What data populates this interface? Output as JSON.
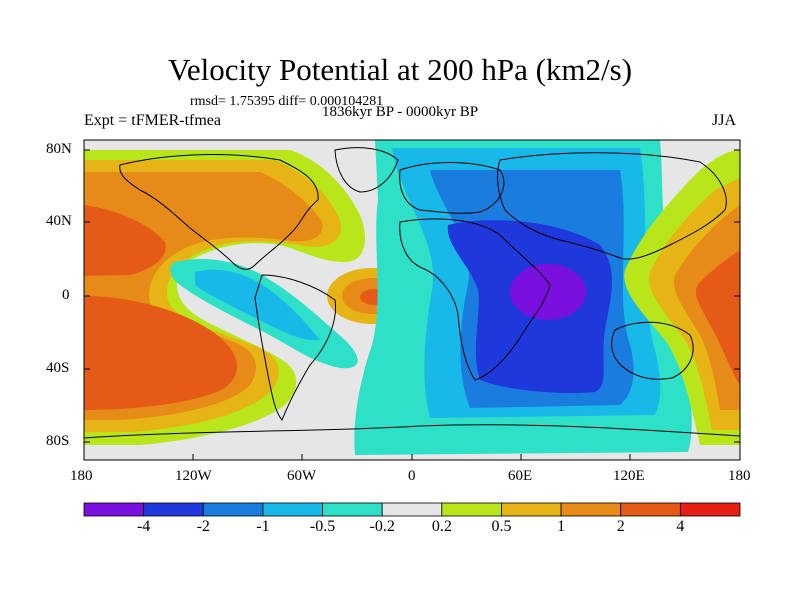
{
  "title": "Velocity Potential at 200 hPa (km2/s)",
  "stats": "rmsd= 1.75395 diff= 0.000104281",
  "period": "1836kyr BP - 0000kyr BP",
  "experiment": "Expt = tFMER-tfmea",
  "season": "JJA",
  "y_axis": {
    "ticks": [
      "80N",
      "40N",
      "0",
      "40S",
      "80S"
    ]
  },
  "x_axis": {
    "ticks": [
      "180",
      "120W",
      "60W",
      "0",
      "60E",
      "120E",
      "180"
    ]
  },
  "colorbar": {
    "colors": [
      "#7a10e0",
      "#1e38dc",
      "#1a7cde",
      "#18b8e8",
      "#2ee0c8",
      "#e6e6e6",
      "#b8e61a",
      "#e6b414",
      "#e68a18",
      "#e65a18",
      "#e61e14"
    ],
    "labels": [
      "-4",
      "-2",
      "-1",
      "-0.5",
      "-0.2",
      "0.2",
      "0.5",
      "1",
      "2",
      "4"
    ]
  },
  "colors": {
    "land_outline": "#000000",
    "background_field": "#e6e6e6"
  }
}
